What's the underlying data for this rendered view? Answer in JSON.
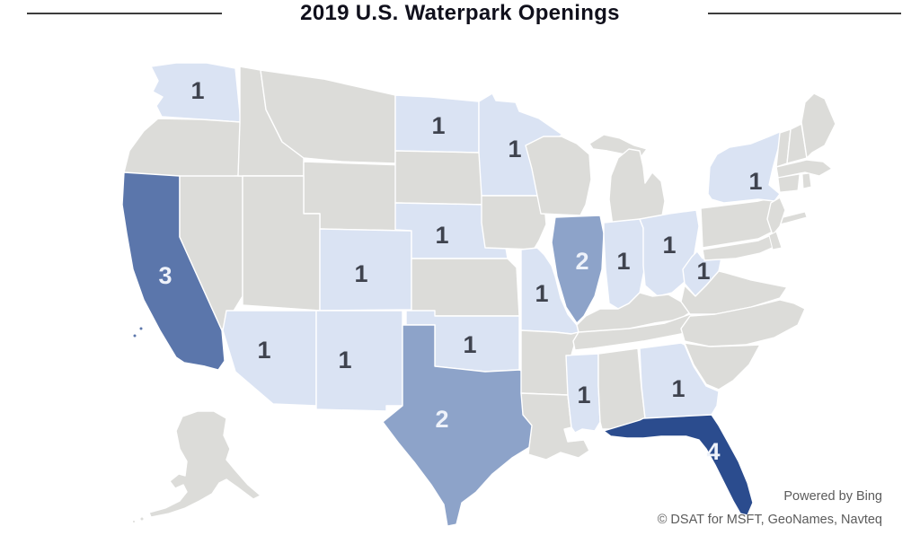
{
  "title": "2019 U.S. Waterpark Openings",
  "attribution": {
    "powered_by": "Powered by Bing",
    "copyright": "© DSAT for MSFT, GeoNames, Navteq"
  },
  "chart_data": {
    "type": "choropleth",
    "title": "2019 U.S. Waterpark Openings",
    "region": "United States",
    "value_meaning": "number of waterpark openings shown as label on each shaded state",
    "legend": "none shown",
    "states": [
      {
        "state": "Washington",
        "abbr": "WA",
        "value": 1
      },
      {
        "state": "California",
        "abbr": "CA",
        "value": 3
      },
      {
        "state": "Arizona",
        "abbr": "AZ",
        "value": 1
      },
      {
        "state": "New Mexico",
        "abbr": "NM",
        "value": 1
      },
      {
        "state": "Colorado",
        "abbr": "CO",
        "value": 1
      },
      {
        "state": "North Dakota",
        "abbr": "ND",
        "value": 1
      },
      {
        "state": "Minnesota",
        "abbr": "MN",
        "value": 1
      },
      {
        "state": "Nebraska",
        "abbr": "NE",
        "value": 1
      },
      {
        "state": "Missouri",
        "abbr": "MO",
        "value": 1
      },
      {
        "state": "Oklahoma",
        "abbr": "OK",
        "value": 1
      },
      {
        "state": "Texas",
        "abbr": "TX",
        "value": 2
      },
      {
        "state": "Illinois",
        "abbr": "IL",
        "value": 2
      },
      {
        "state": "Indiana",
        "abbr": "IN",
        "value": 1
      },
      {
        "state": "Ohio",
        "abbr": "OH",
        "value": 1
      },
      {
        "state": "West Virginia",
        "abbr": "WV",
        "value": 1
      },
      {
        "state": "New York",
        "abbr": "NY",
        "value": 1
      },
      {
        "state": "Mississippi",
        "abbr": "MS",
        "value": 1
      },
      {
        "state": "Georgia",
        "abbr": "GA",
        "value": 1
      },
      {
        "state": "Florida",
        "abbr": "FL",
        "value": 4
      }
    ],
    "color_scale": [
      {
        "value": 1,
        "fill": "#dae3f3",
        "label_color": "#3f434e"
      },
      {
        "value": 2,
        "fill": "#8da3c9",
        "label_color": "#eef2fa"
      },
      {
        "value": 3,
        "fill": "#5b76ab",
        "label_color": "#eef2fa"
      },
      {
        "value": 4,
        "fill": "#2b4c8e",
        "label_color": "#eef2fa"
      }
    ],
    "no_data_fill": "#dcdcd9",
    "background": "#ffffff"
  }
}
